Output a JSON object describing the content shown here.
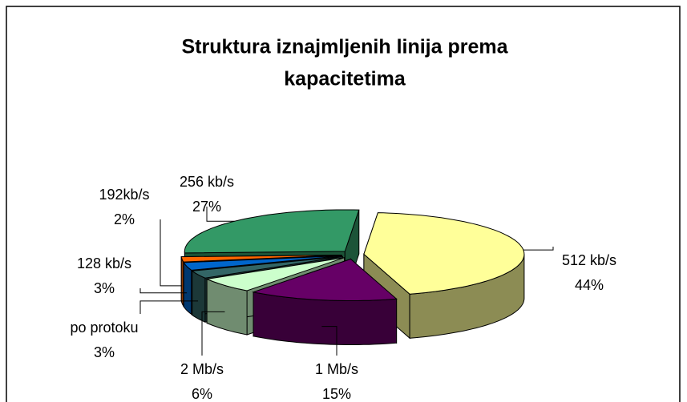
{
  "chart_data": {
    "type": "pie3d",
    "title": [
      "Struktura iznajmljenih linija prema",
      "kapacitetima"
    ],
    "categories": [
      "512 kb/s",
      "1 Mb/s",
      "2 Mb/s",
      "po protoku",
      "128 kb/s",
      "192kb/s",
      "256 kb/s"
    ],
    "values": [
      44,
      15,
      6,
      3,
      3,
      2,
      27
    ],
    "value_labels": [
      "44%",
      "15%",
      "6%",
      "3%",
      "3%",
      "2%",
      "27%"
    ],
    "colors": [
      "#ffff99",
      "#660066",
      "#ccffcc",
      "#336666",
      "#0066cc",
      "#ff6600",
      "#339966"
    ]
  }
}
